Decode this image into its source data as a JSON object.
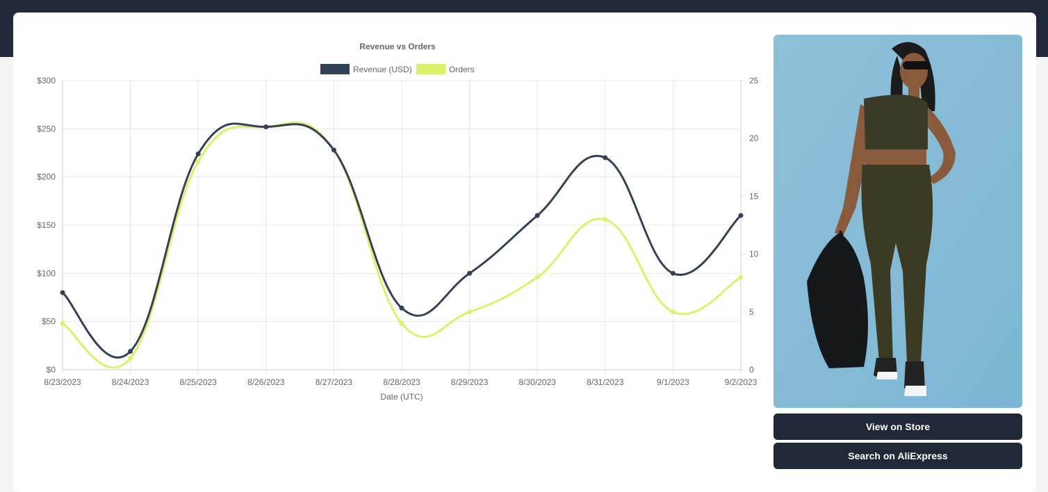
{
  "chart_data": {
    "type": "line",
    "title": "Revenue vs Orders",
    "xlabel": "Date (UTC)",
    "categories": [
      "8/23/2023",
      "8/24/2023",
      "8/25/2023",
      "8/26/2023",
      "8/27/2023",
      "8/28/2023",
      "8/29/2023",
      "8/30/2023",
      "8/31/2023",
      "9/1/2023",
      "9/2/2023"
    ],
    "series": [
      {
        "name": "Revenue (USD)",
        "axis": "left",
        "color": "#334155",
        "values": [
          80,
          19,
          224,
          252,
          228,
          64,
          100,
          160,
          220,
          100,
          160
        ]
      },
      {
        "name": "Orders",
        "axis": "right",
        "color": "#d9f26b",
        "values": [
          4,
          1,
          18,
          21,
          19,
          4,
          5,
          8,
          13,
          5,
          8
        ]
      }
    ],
    "y_left": {
      "min": 0,
      "max": 300,
      "ticks": [
        "$0",
        "$50",
        "$100",
        "$150",
        "$200",
        "$250",
        "$300"
      ]
    },
    "y_right": {
      "min": 0,
      "max": 25,
      "ticks": [
        "0",
        "5",
        "10",
        "15",
        "20",
        "25"
      ]
    },
    "grid": true,
    "legend": "top-center"
  },
  "actions": {
    "view_store": "View on Store",
    "search_ali": "Search on AliExpress"
  },
  "colors": {
    "header": "#1f2937",
    "button": "#1f2937",
    "revenue": "#334155",
    "orders": "#d9f26b",
    "image_bg": "#94c7e0"
  }
}
